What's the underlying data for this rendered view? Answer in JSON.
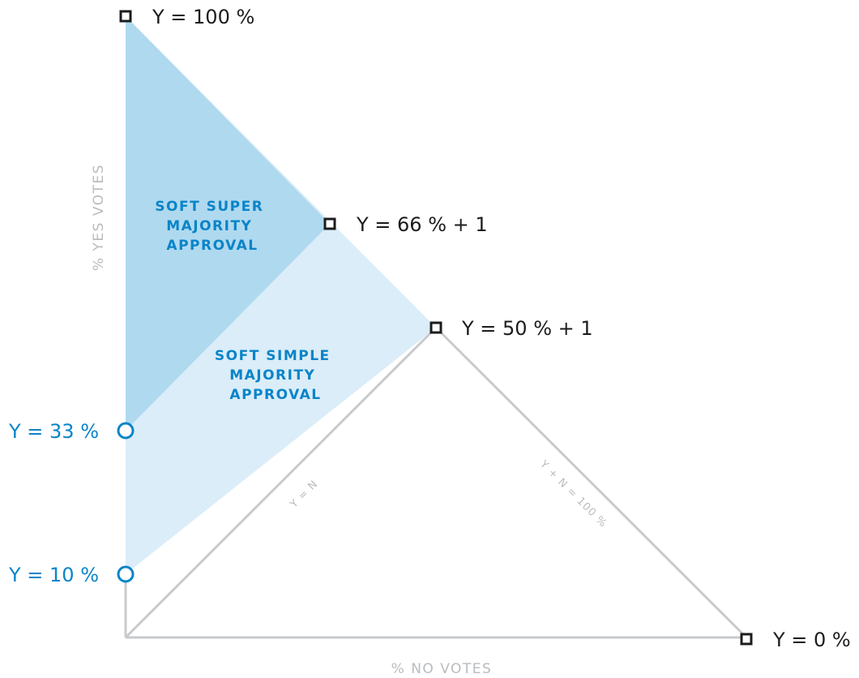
{
  "axes": {
    "x_label": "% NO VOTES",
    "y_label": "% YES VOTES"
  },
  "lines": {
    "y_equals_n": "Y = N",
    "y_plus_n": "Y + N = 100 %"
  },
  "regions": {
    "super": [
      "SOFT SUPER",
      "MAJORITY",
      "APPROVAL"
    ],
    "simple": [
      "SOFT SIMPLE",
      "MAJORITY",
      "APPROVAL"
    ]
  },
  "points": {
    "y100": "Y = 100 %",
    "y66": "Y = 66 % + 1",
    "y50": "Y = 50 % + 1",
    "y0": "Y = 0 %",
    "y33": "Y = 33 %",
    "y10": "Y = 10 %"
  },
  "colors": {
    "super_fill": "#afd9ef",
    "simple_fill": "#daedf8",
    "line": "#c8cacc",
    "accent": "#0a84c8",
    "marker": "#1c1c1c"
  }
}
